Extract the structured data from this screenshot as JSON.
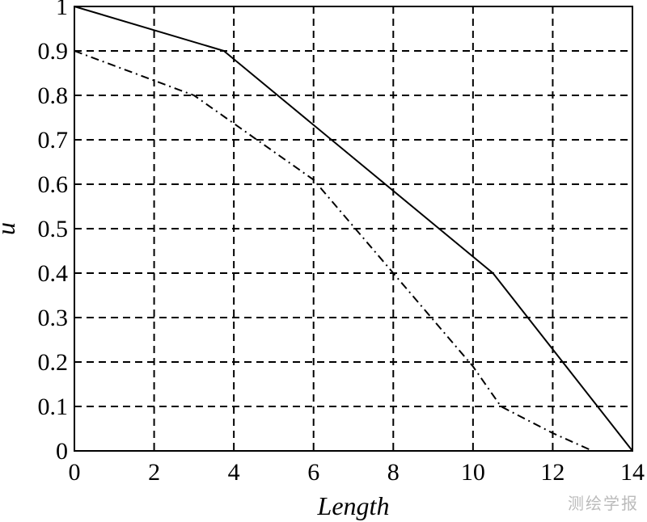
{
  "chart_data": {
    "type": "line",
    "title": "",
    "xlabel": "Length",
    "ylabel": "u",
    "xlim": [
      0,
      14
    ],
    "ylim": [
      0,
      1
    ],
    "x_ticks": [
      0,
      2,
      4,
      6,
      8,
      10,
      12,
      14
    ],
    "y_ticks": [
      0,
      0.1,
      0.2,
      0.3,
      0.4,
      0.5,
      0.6,
      0.7,
      0.8,
      0.9,
      1
    ],
    "x_tick_labels": [
      "0",
      "2",
      "4",
      "6",
      "8",
      "10",
      "12",
      "14"
    ],
    "y_tick_labels": [
      "0",
      "0.1",
      "0.2",
      "0.3",
      "0.4",
      "0.5",
      "0.6",
      "0.7",
      "0.8",
      "0.9",
      "1"
    ],
    "grid": true,
    "grid_style": "dashed",
    "legend": "none",
    "series": [
      {
        "style": "solid",
        "color": "#000000",
        "x": [
          0,
          3.75,
          10.5,
          14
        ],
        "y": [
          1.0,
          0.9,
          0.4,
          0.0
        ]
      },
      {
        "style": "dashdot",
        "color": "#000000",
        "x": [
          0,
          3.0,
          6.0,
          8.0,
          10.0,
          10.7,
          12.0,
          13.0
        ],
        "y": [
          0.9,
          0.8,
          0.61,
          0.4,
          0.19,
          0.1,
          0.04,
          0.0
        ]
      }
    ]
  },
  "watermark": "测绘学报"
}
